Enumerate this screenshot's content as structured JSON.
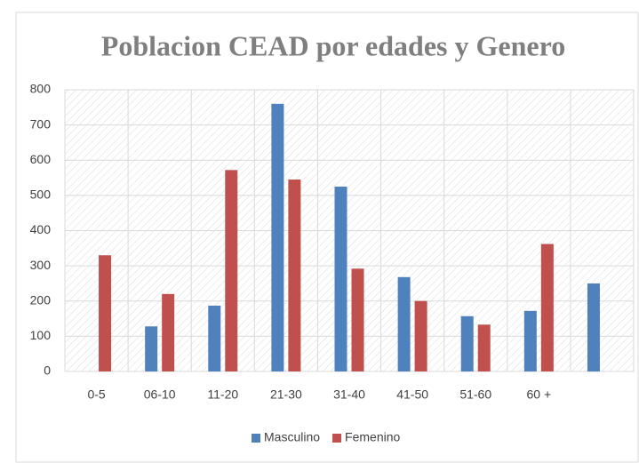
{
  "chart_data": {
    "type": "bar",
    "title": "Poblacion CEAD por edades y Genero",
    "categories": [
      "0-5",
      "06-10",
      "11-20",
      "21-30",
      "31-40",
      "41-50",
      "51-60",
      "60 +",
      null
    ],
    "series": [
      {
        "name": "Masculino",
        "color": "#4f81bd",
        "values": [
          null,
          128,
          187,
          760,
          525,
          268,
          157,
          172,
          250
        ]
      },
      {
        "name": "Femenino",
        "color": "#c0504d",
        "values": [
          330,
          220,
          572,
          545,
          292,
          200,
          133,
          362,
          null
        ]
      }
    ],
    "ylim": [
      0,
      800
    ],
    "yticks": [
      0,
      100,
      200,
      300,
      400,
      500,
      600,
      700,
      800
    ],
    "grid": true,
    "legend": "bottom"
  }
}
